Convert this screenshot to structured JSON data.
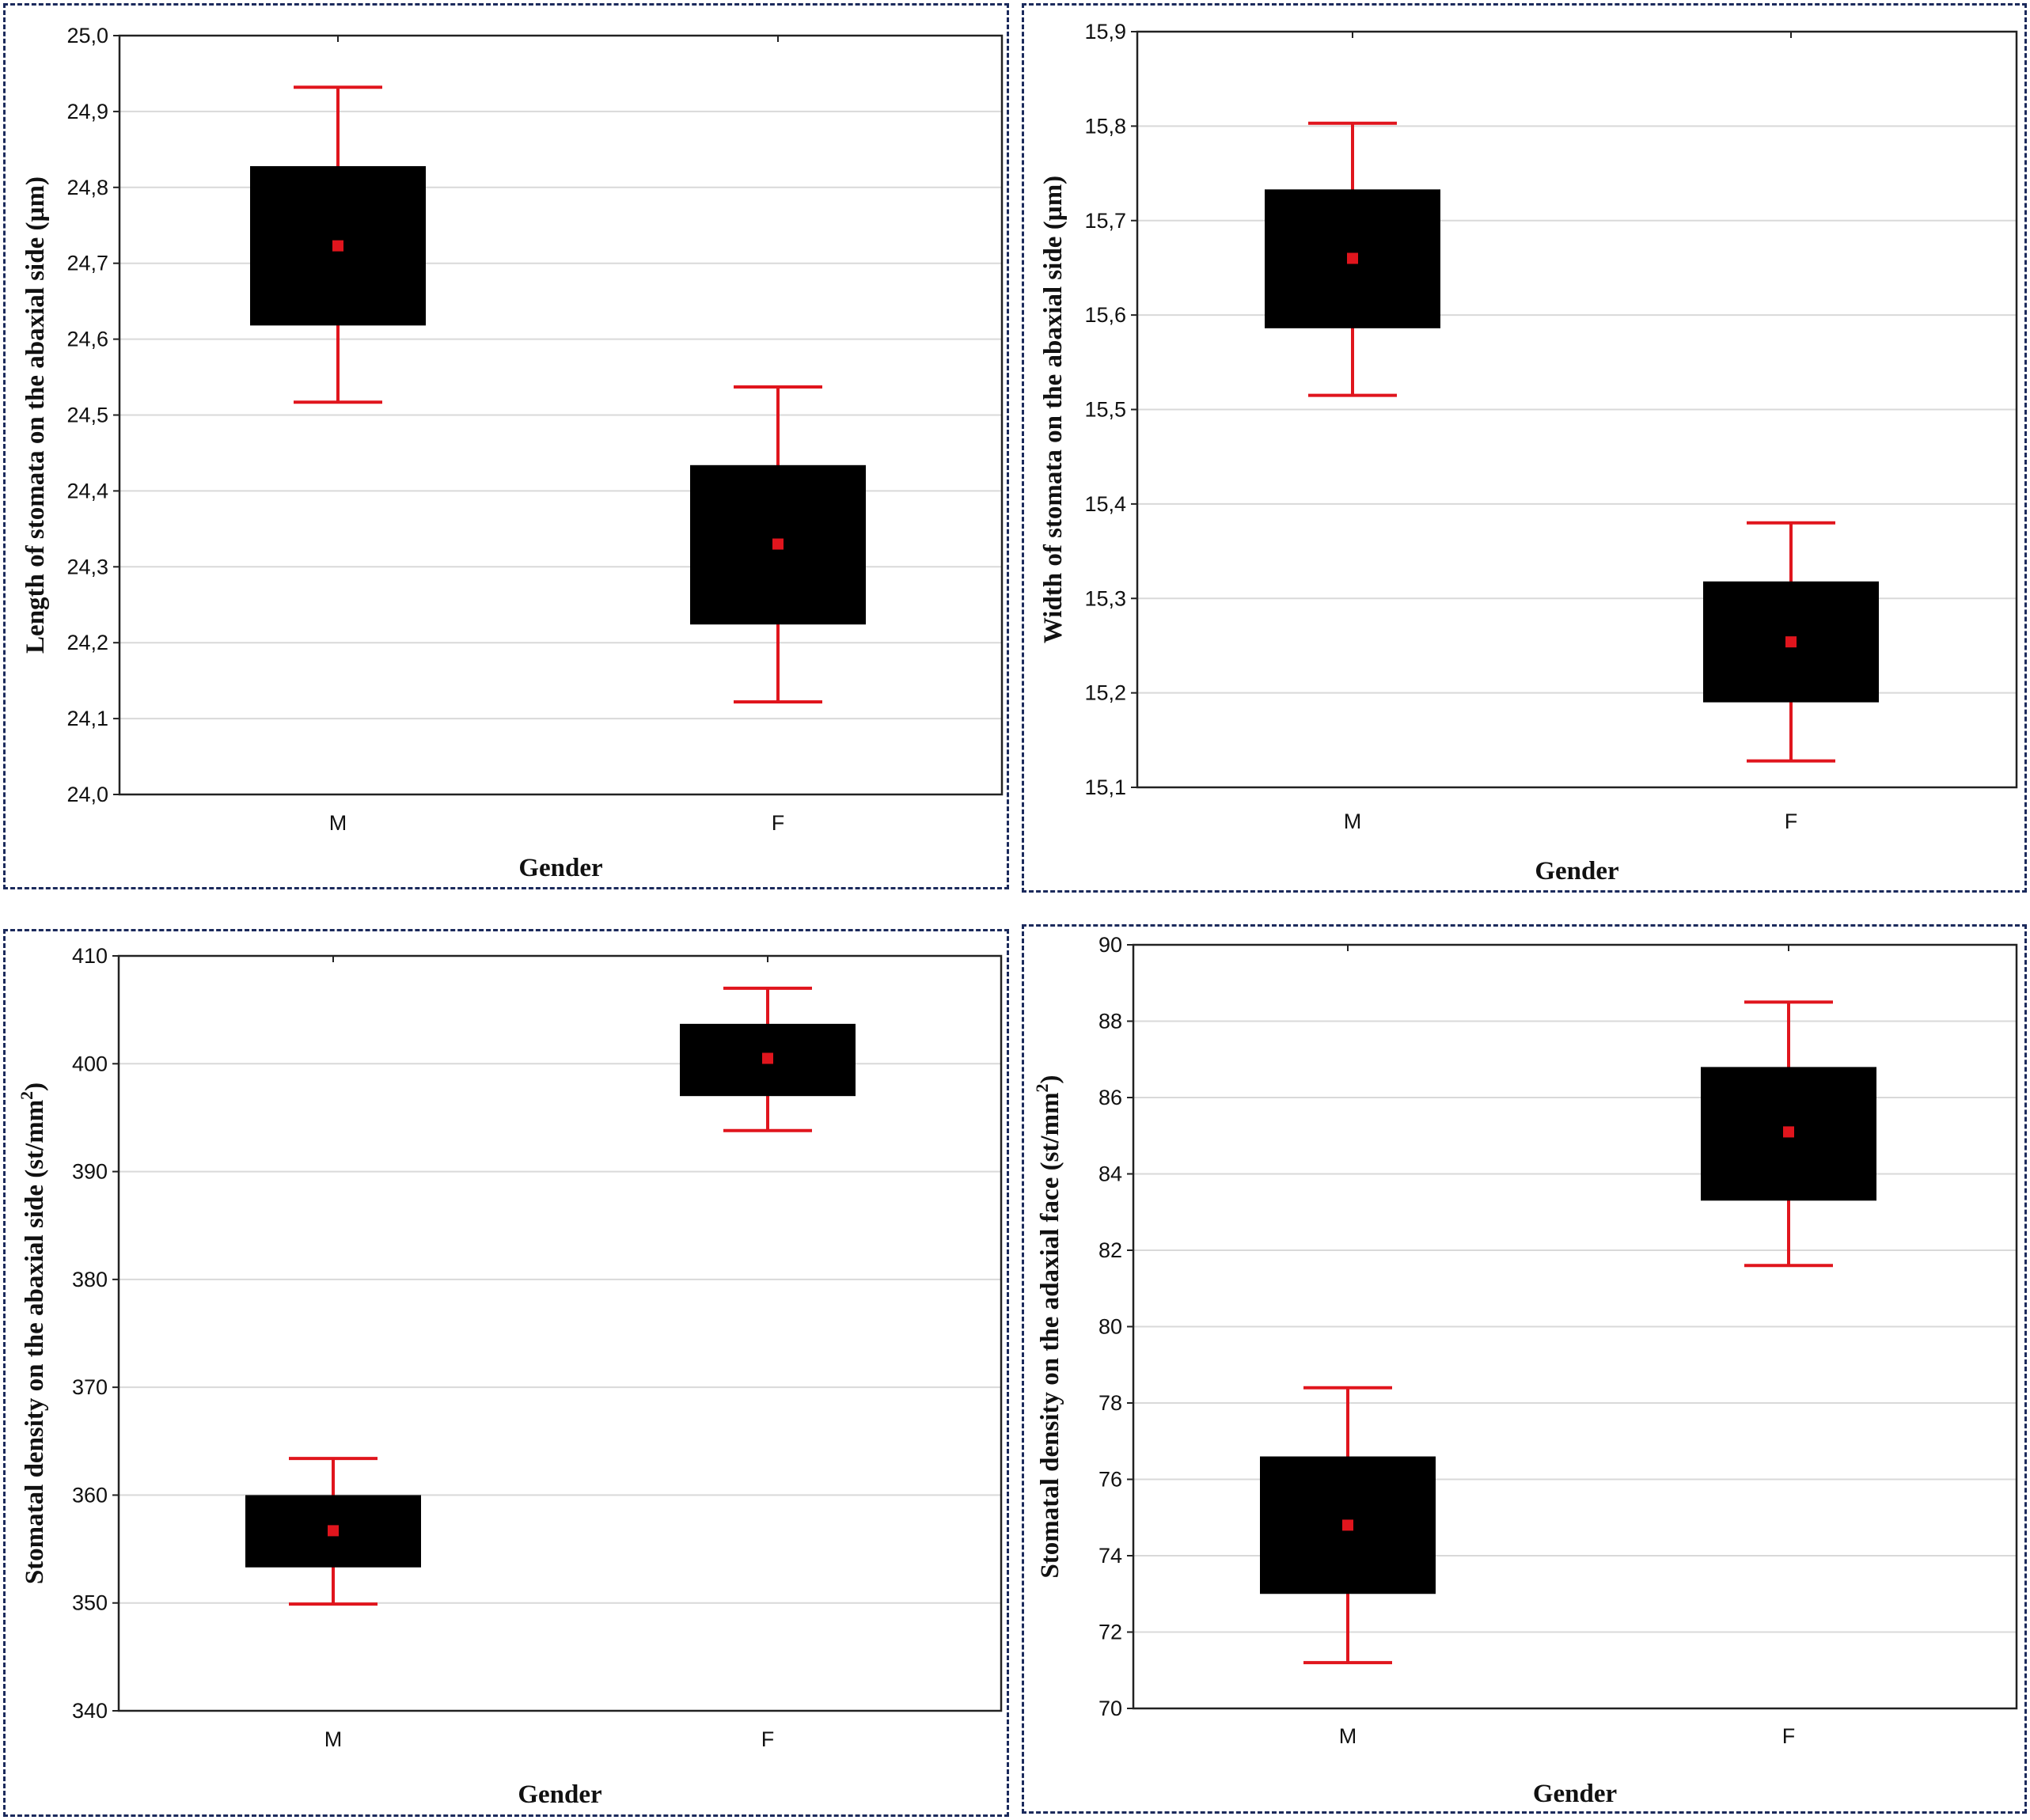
{
  "chart_data": [
    {
      "type": "box",
      "xlabel": "Gender",
      "ylabel": "Length of stomata on the abaxial side (µm)",
      "ylabel_sup": "",
      "ylabel_tail": "",
      "categories": [
        "M",
        "F"
      ],
      "ylim": [
        24.0,
        25.0
      ],
      "yticks": [
        "24,0",
        "24,1",
        "24,2",
        "24,3",
        "24,4",
        "24,5",
        "24,6",
        "24,7",
        "24,8",
        "24,9",
        "25,0"
      ],
      "series": [
        {
          "name": "M",
          "mean": 24.723,
          "box": [
            24.618,
            24.828
          ],
          "whisker": [
            24.517,
            24.932
          ]
        },
        {
          "name": "F",
          "mean": 24.33,
          "box": [
            24.224,
            24.434
          ],
          "whisker": [
            24.122,
            24.537
          ]
        }
      ]
    },
    {
      "type": "box",
      "xlabel": "Gender",
      "ylabel": "Width of stomata on the abaxial side (µm)",
      "ylabel_sup": "",
      "ylabel_tail": "",
      "categories": [
        "M",
        "F"
      ],
      "ylim": [
        15.1,
        15.9
      ],
      "yticks": [
        "15,1",
        "15,2",
        "15,3",
        "15,4",
        "15,5",
        "15,6",
        "15,7",
        "15,8",
        "15,9"
      ],
      "series": [
        {
          "name": "M",
          "mean": 15.66,
          "box": [
            15.586,
            15.733
          ],
          "whisker": [
            15.515,
            15.803
          ]
        },
        {
          "name": "F",
          "mean": 15.254,
          "box": [
            15.19,
            15.318
          ],
          "whisker": [
            15.128,
            15.38
          ]
        }
      ]
    },
    {
      "type": "box",
      "xlabel": "Gender",
      "ylabel": "Stomatal density on the abaxial side (st/mm",
      "ylabel_sup": "2",
      "ylabel_tail": ")",
      "categories": [
        "M",
        "F"
      ],
      "ylim": [
        340,
        410
      ],
      "yticks": [
        "340",
        "350",
        "360",
        "370",
        "380",
        "390",
        "400",
        "410"
      ],
      "series": [
        {
          "name": "M",
          "mean": 356.7,
          "box": [
            353.3,
            360.0
          ],
          "whisker": [
            349.9,
            363.4
          ]
        },
        {
          "name": "F",
          "mean": 400.5,
          "box": [
            397.0,
            403.7
          ],
          "whisker": [
            393.8,
            407.0
          ]
        }
      ]
    },
    {
      "type": "box",
      "xlabel": "Gender",
      "ylabel": "Stomatal density on the adaxial face (st/mm",
      "ylabel_sup": "2",
      "ylabel_tail": ")",
      "categories": [
        "M",
        "F"
      ],
      "ylim": [
        70,
        90
      ],
      "yticks": [
        "70",
        "72",
        "74",
        "76",
        "78",
        "80",
        "82",
        "84",
        "86",
        "88",
        "90"
      ],
      "series": [
        {
          "name": "M",
          "mean": 74.8,
          "box": [
            73.0,
            76.6
          ],
          "whisker": [
            71.2,
            78.4
          ]
        },
        {
          "name": "F",
          "mean": 85.1,
          "box": [
            83.3,
            86.8
          ],
          "whisker": [
            81.6,
            88.5
          ]
        }
      ]
    }
  ],
  "colors": {
    "box": "#000000",
    "whisker": "#e0151d",
    "mean": "#e0151d",
    "grid": "#d9d9d9",
    "frame": "#1b2a5c"
  }
}
